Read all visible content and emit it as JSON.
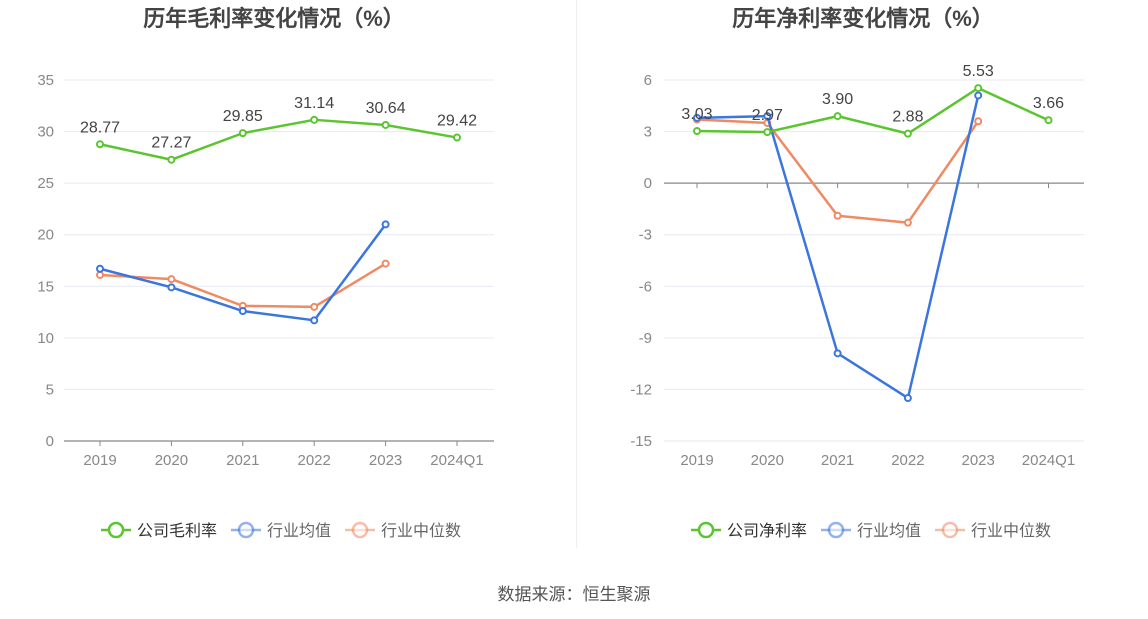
{
  "source": "数据来源：恒生聚源",
  "colors": {
    "company": "#5ac52f",
    "avg": "#3b75de",
    "median": "#f08a62",
    "grid": "#e6e9f2",
    "axis": "#888888",
    "tick": "#888888",
    "label": "#444444",
    "title": "#444444"
  },
  "chart_data": [
    {
      "type": "line",
      "title": "历年毛利率变化情况（%）",
      "categories": [
        "2019",
        "2020",
        "2021",
        "2022",
        "2023",
        "2024Q1"
      ],
      "ylim": [
        0,
        35
      ],
      "yticks": [
        0,
        5,
        10,
        15,
        20,
        25,
        30,
        35
      ],
      "grid": true,
      "legend_position": "bottom-center",
      "series": [
        {
          "name": "公司毛利率",
          "color": "#5ac52f",
          "values": [
            28.77,
            27.27,
            29.85,
            31.14,
            30.64,
            29.42
          ],
          "show_labels": true,
          "labels": [
            "28.77",
            "27.27",
            "29.85",
            "31.14",
            "30.64",
            "29.42"
          ]
        },
        {
          "name": "行业均值",
          "color": "#3b75de",
          "values": [
            16.7,
            14.9,
            12.6,
            11.7,
            21.0,
            null
          ]
        },
        {
          "name": "行业中位数",
          "color": "#f08a62",
          "values": [
            16.1,
            15.7,
            13.1,
            13.0,
            17.2,
            null
          ]
        }
      ]
    },
    {
      "type": "line",
      "title": "历年净利率变化情况（%）",
      "categories": [
        "2019",
        "2020",
        "2021",
        "2022",
        "2023",
        "2024Q1"
      ],
      "ylim": [
        -15,
        6
      ],
      "yticks": [
        -15,
        -12,
        -9,
        -6,
        -3,
        0,
        3,
        6
      ],
      "grid": true,
      "legend_position": "bottom-center",
      "series": [
        {
          "name": "公司净利率",
          "color": "#5ac52f",
          "values": [
            3.03,
            2.97,
            3.9,
            2.88,
            5.53,
            3.66
          ],
          "show_labels": true,
          "labels": [
            "3.03",
            "2.97",
            "3.90",
            "2.88",
            "5.53",
            "3.66"
          ]
        },
        {
          "name": "行业均值",
          "color": "#3b75de",
          "values": [
            3.8,
            3.9,
            -9.9,
            -12.5,
            5.1,
            null
          ]
        },
        {
          "name": "行业中位数",
          "color": "#f08a62",
          "values": [
            3.7,
            3.5,
            -1.9,
            -2.3,
            3.6,
            null
          ]
        }
      ]
    }
  ]
}
